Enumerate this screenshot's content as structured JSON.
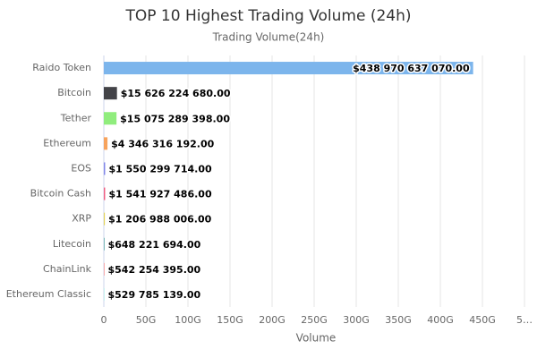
{
  "chart_data": {
    "type": "bar",
    "orientation": "horizontal",
    "title": "TOP 10 Highest Trading Volume (24h)",
    "subtitle": "Trading Volume(24h)",
    "x_label": "Volume",
    "categories": [
      "Raido Token",
      "Bitcoin",
      "Tether",
      "Ethereum",
      "EOS",
      "Bitcoin Cash",
      "XRP",
      "Litecoin",
      "ChainLink",
      "Ethereum Classic"
    ],
    "values": [
      438970637070,
      15626224680,
      15075289398,
      4346316192,
      1550299714,
      1541927486,
      1206988006,
      648221694,
      542254395,
      529785139
    ],
    "value_labels": [
      "$438 970 637 070.00",
      "$15 626 224 680.00",
      "$15 075 289 398.00",
      "$4 346 316 192.00",
      "$1 550 299 714.00",
      "$1 541 927 486.00",
      "$1 206 988 006.00",
      "$648 221 694.00",
      "$542 254 395.00",
      "$529 785 139.00"
    ],
    "colors": [
      "#7cb5ec",
      "#434348",
      "#90ed7d",
      "#f7a35c",
      "#8085e9",
      "#f15c80",
      "#e4d354",
      "#2b908f",
      "#f45b5b",
      "#91e8e1"
    ],
    "xlim": [
      0,
      500000000000
    ],
    "xticks": [
      0,
      {
        "value": 50000000000,
        "label": "50G"
      },
      {
        "value": 100000000000,
        "label": "100G"
      },
      {
        "value": 150000000000,
        "label": "150G"
      },
      {
        "value": 200000000000,
        "label": "200G"
      },
      {
        "value": 250000000000,
        "label": "250G"
      },
      {
        "value": 300000000000,
        "label": "300G"
      },
      {
        "value": 350000000000,
        "label": "350G"
      },
      {
        "value": 400000000000,
        "label": "400G"
      },
      {
        "value": 450000000000,
        "label": "450G"
      },
      {
        "value": 500000000000,
        "label": "5…"
      }
    ],
    "grid": true
  }
}
